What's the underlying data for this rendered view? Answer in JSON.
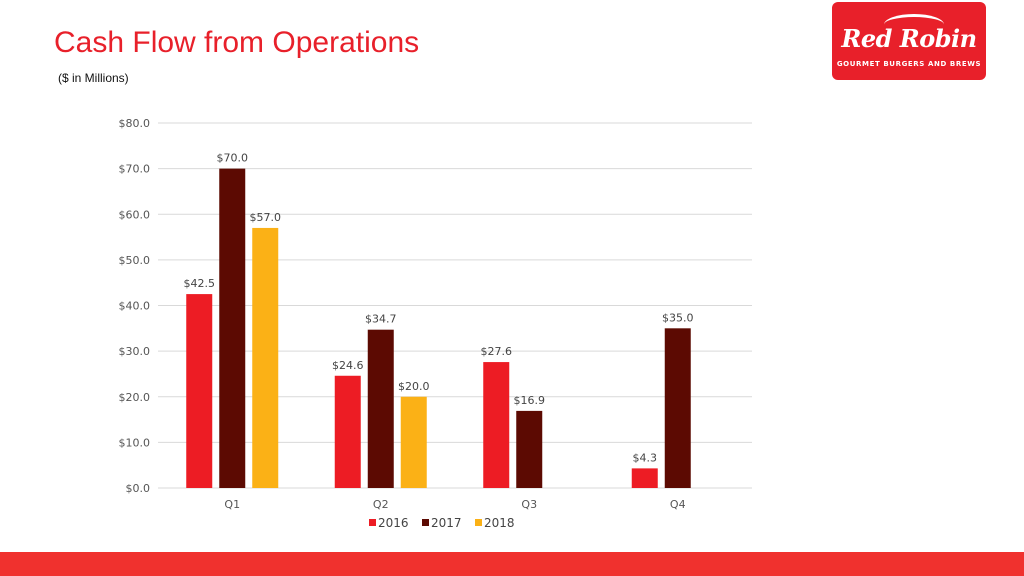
{
  "header": {
    "title": "Cash Flow from Operations",
    "subtitle": "($ in Millions)"
  },
  "logo": {
    "brand": "Red Robin",
    "tagline": "GOURMET BURGERS AND BREWS"
  },
  "colors": {
    "accent": "#e8202a",
    "footer": "#f0312e",
    "grid": "#d9d9d9"
  },
  "chart_data": {
    "type": "bar",
    "categories": [
      "Q1",
      "Q2",
      "Q3",
      "Q4"
    ],
    "series": [
      {
        "name": "2016",
        "color": "#ed1c24",
        "values": [
          42.5,
          24.6,
          27.6,
          4.3
        ],
        "labels": [
          "$42.5",
          "$24.6",
          "$27.6",
          "$4.3"
        ]
      },
      {
        "name": "2017",
        "color": "#5c0a02",
        "values": [
          70.0,
          34.7,
          16.9,
          35.0
        ],
        "labels": [
          "$70.0",
          "$34.7",
          "$16.9",
          "$35.0"
        ]
      },
      {
        "name": "2018",
        "color": "#fbb116",
        "values": [
          57.0,
          20.0,
          null,
          null
        ],
        "labels": [
          "$57.0",
          "$20.0",
          "",
          ""
        ]
      }
    ],
    "yticks": [
      0,
      10,
      20,
      30,
      40,
      50,
      60,
      70,
      80
    ],
    "ytick_labels": [
      "$0.0",
      "$10.0",
      "$20.0",
      "$30.0",
      "$40.0",
      "$50.0",
      "$60.0",
      "$70.0",
      "$80.0"
    ],
    "ylim": [
      0,
      80
    ],
    "grid": true,
    "legend": "bottom-center"
  }
}
